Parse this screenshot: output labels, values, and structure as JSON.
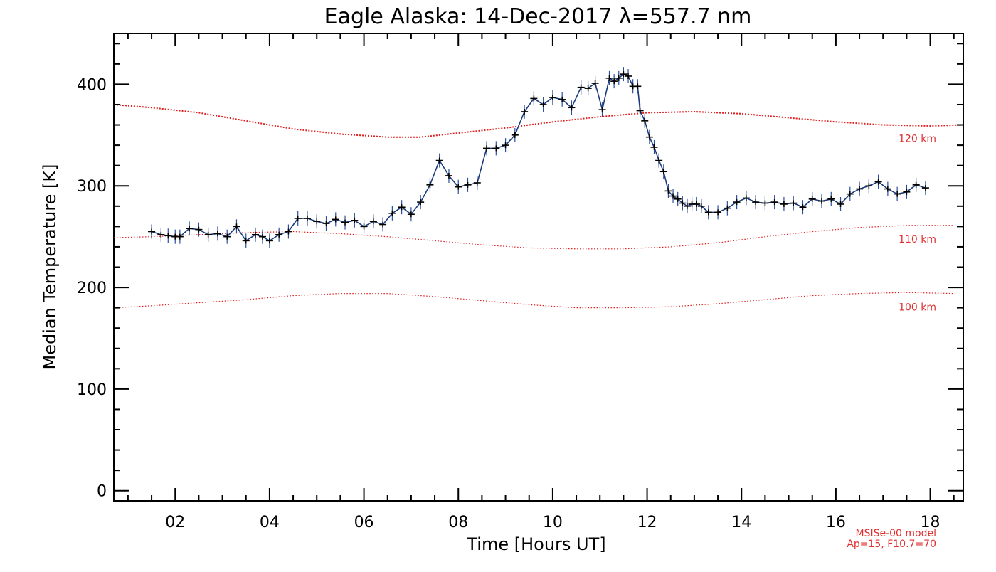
{
  "chart_data": {
    "type": "line",
    "title": "Eagle Alaska: 14-Dec-2017 λ=557.7 nm",
    "xlabel": "Time [Hours UT]",
    "ylabel": "Median Temperature [K]",
    "xlim": [
      0.7,
      18.7
    ],
    "ylim": [
      -10,
      450
    ],
    "x_ticks": [
      2,
      4,
      6,
      8,
      10,
      12,
      14,
      16,
      18
    ],
    "x_tick_labels": [
      "02",
      "04",
      "06",
      "08",
      "10",
      "12",
      "14",
      "16",
      "18"
    ],
    "y_ticks": [
      0,
      100,
      200,
      300,
      400
    ],
    "y_tick_labels": [
      "0",
      "100",
      "200",
      "300",
      "400"
    ],
    "grid": false,
    "colors": {
      "measured": "#1a3a7a",
      "markers": "#000000",
      "model": "#e02020",
      "model_text": "#e03030"
    },
    "measured_series": {
      "x": [
        1.5,
        1.7,
        1.85,
        2.0,
        2.1,
        2.3,
        2.5,
        2.7,
        2.9,
        3.1,
        3.3,
        3.5,
        3.7,
        3.85,
        4.0,
        4.2,
        4.4,
        4.6,
        4.8,
        5.0,
        5.2,
        5.4,
        5.6,
        5.8,
        6.0,
        6.2,
        6.4,
        6.6,
        6.8,
        7.0,
        7.2,
        7.4,
        7.6,
        7.8,
        8.0,
        8.2,
        8.4,
        8.6,
        8.8,
        9.0,
        9.2,
        9.4,
        9.6,
        9.8,
        10.0,
        10.2,
        10.4,
        10.6,
        10.75,
        10.9,
        11.05,
        11.2,
        11.3,
        11.4,
        11.5,
        11.6,
        11.7,
        11.8,
        11.85,
        11.95,
        12.05,
        12.15,
        12.25,
        12.35,
        12.45,
        12.55,
        12.65,
        12.75,
        12.85,
        12.95,
        13.05,
        13.15,
        13.3,
        13.5,
        13.7,
        13.9,
        14.1,
        14.3,
        14.5,
        14.7,
        14.9,
        15.1,
        15.3,
        15.5,
        15.7,
        15.9,
        16.1,
        16.3,
        16.5,
        16.7,
        16.9,
        17.1,
        17.3,
        17.5,
        17.7,
        17.9
      ],
      "y": [
        255,
        252,
        251,
        250,
        250,
        258,
        257,
        252,
        253,
        250,
        260,
        246,
        252,
        250,
        246,
        252,
        255,
        268,
        268,
        265,
        263,
        267,
        264,
        266,
        260,
        265,
        262,
        273,
        279,
        272,
        284,
        301,
        325,
        310,
        299,
        301,
        303,
        337,
        337,
        340,
        350,
        373,
        386,
        380,
        387,
        385,
        377,
        397,
        396,
        401,
        375,
        406,
        403,
        406,
        410,
        408,
        398,
        398,
        374,
        364,
        348,
        338,
        325,
        314,
        295,
        290,
        287,
        283,
        280,
        282,
        282,
        280,
        274,
        274,
        278,
        284,
        288,
        284,
        283,
        284,
        282,
        283,
        279,
        287,
        285,
        287,
        282,
        292,
        297,
        300,
        304,
        297,
        292,
        294,
        301,
        298
      ]
    },
    "model_curves": [
      {
        "name": "120 km",
        "x": [
          0.7,
          1.5,
          2.5,
          3.5,
          4.5,
          5.5,
          6.5,
          7.2,
          8.0,
          9.0,
          10.0,
          11.0,
          12.0,
          13.0,
          14.0,
          15.0,
          16.0,
          17.0,
          18.0,
          18.7
        ],
        "y": [
          380,
          377,
          372,
          364,
          356,
          351,
          348,
          348,
          352,
          357,
          363,
          368,
          372,
          373,
          371,
          367,
          363,
          360,
          359,
          360
        ]
      },
      {
        "name": "110 km",
        "x": [
          0.7,
          1.5,
          2.5,
          3.5,
          4.5,
          5.5,
          6.5,
          7.5,
          8.5,
          9.5,
          10.5,
          11.5,
          12.5,
          13.5,
          14.5,
          15.5,
          16.5,
          17.5,
          18.5
        ],
        "y": [
          249,
          250,
          252,
          254,
          255,
          253,
          250,
          246,
          242,
          239,
          238,
          238,
          240,
          244,
          250,
          255,
          259,
          261,
          261
        ]
      },
      {
        "name": "100 km",
        "x": [
          0.7,
          1.5,
          2.5,
          3.5,
          4.5,
          5.5,
          6.5,
          7.5,
          8.5,
          9.5,
          10.5,
          11.5,
          12.5,
          13.5,
          14.5,
          15.5,
          16.5,
          17.5,
          18.5
        ],
        "y": [
          180,
          182,
          185,
          188,
          192,
          194,
          194,
          191,
          187,
          183,
          180,
          180,
          181,
          184,
          188,
          192,
          194,
          195,
          194
        ]
      }
    ],
    "model_note_lines": [
      "MSISe-00 model",
      "Ap=15, F10.7=70"
    ]
  }
}
